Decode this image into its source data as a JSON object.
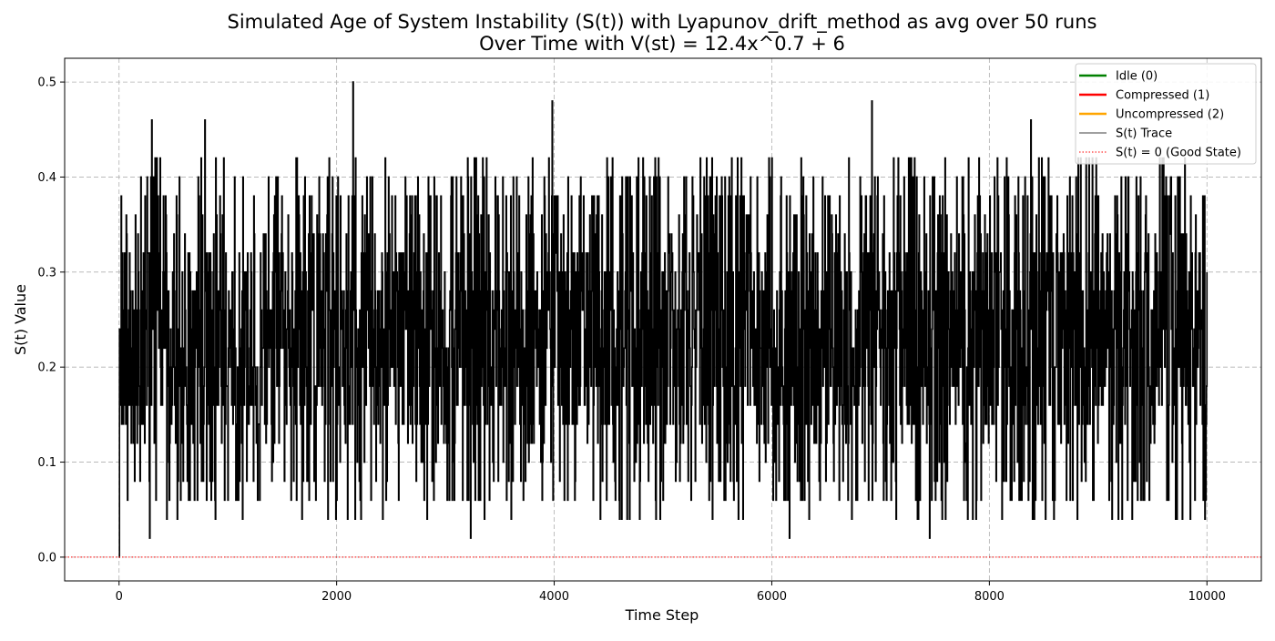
{
  "chart_data": {
    "type": "line",
    "title": "Simulated Age of System Instability (S(t)) with Lyapunov_drift_method as avg over 50 runs",
    "subtitle": "Over Time with V(st) = 12.4x^0.7 + 6",
    "xlabel": "Time Step",
    "ylabel": "S(t) Value",
    "xlim": [
      -500,
      10500
    ],
    "ylim": [
      -0.025,
      0.525
    ],
    "xticks": [
      0,
      2000,
      4000,
      6000,
      8000,
      10000
    ],
    "xtick_labels": [
      "0",
      "2000",
      "4000",
      "6000",
      "8000",
      "10000"
    ],
    "yticks": [
      0.0,
      0.1,
      0.2,
      0.3,
      0.4,
      0.5
    ],
    "ytick_labels": [
      "0.0",
      "0.1",
      "0.2",
      "0.3",
      "0.4",
      "0.5"
    ],
    "grid": true,
    "legend_position": "top-right",
    "series": [
      {
        "name": "Idle (0)",
        "color": "#008000",
        "style": "solid",
        "values": []
      },
      {
        "name": "Compressed (1)",
        "color": "#ff0000",
        "style": "solid",
        "values": []
      },
      {
        "name": "Uncompressed (2)",
        "color": "#ffa500",
        "style": "solid",
        "values": []
      },
      {
        "name": "S(t) Trace",
        "color": "#000000",
        "style": "solid",
        "x_range": [
          0,
          10000
        ],
        "typical_band": [
          0.12,
          0.34
        ],
        "extrema": [
          {
            "x": 0,
            "y": 0.0
          },
          {
            "x": 2150,
            "y": 0.5
          },
          {
            "x": 3980,
            "y": 0.48
          },
          {
            "x": 6920,
            "y": 0.48
          },
          {
            "x": 300,
            "y": 0.46
          },
          {
            "x": 790,
            "y": 0.46
          },
          {
            "x": 8380,
            "y": 0.46
          },
          {
            "x": 280,
            "y": 0.02
          },
          {
            "x": 3230,
            "y": 0.02
          },
          {
            "x": 6160,
            "y": 0.02
          },
          {
            "x": 7450,
            "y": 0.02
          }
        ]
      },
      {
        "name": "S(t) = 0 (Good State)",
        "color": "#ff0000",
        "style": "dotted",
        "y": 0.0
      }
    ]
  }
}
